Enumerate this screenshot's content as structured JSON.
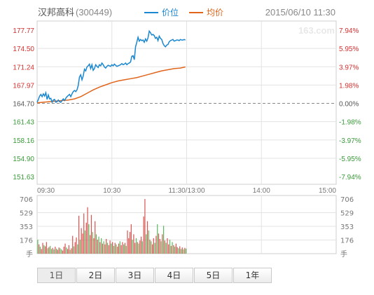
{
  "header": {
    "stock_name": "汉邦高科",
    "stock_code": "(300449)",
    "legend_price": "价位",
    "legend_avg": "均价",
    "datetime": "2015/06/10 11:30",
    "watermark": "163.com"
  },
  "colors": {
    "price_line": "#1a87d0",
    "avg_line": "#e0641a",
    "up": "#d62f2f",
    "down": "#3a9a3a",
    "grid": "#e3e3e3",
    "baseline": "#888888",
    "vol_up": "#d9534f",
    "vol_down": "#5cb85c"
  },
  "tabs": [
    {
      "label": "1日",
      "active": true
    },
    {
      "label": "2日",
      "active": false
    },
    {
      "label": "3日",
      "active": false
    },
    {
      "label": "4日",
      "active": false
    },
    {
      "label": "5日",
      "active": false
    },
    {
      "label": "1年",
      "active": false
    }
  ],
  "chart_data": {
    "type": "line",
    "price_axis": {
      "ticks": [
        "177.77",
        "174.50",
        "171.24",
        "167.97",
        "164.70",
        "161.43",
        "158.16",
        "154.90",
        "151.63"
      ],
      "min": 151.63,
      "max": 177.77,
      "baseline": 164.7
    },
    "percent_axis": {
      "ticks": [
        "7.94%",
        "5.95%",
        "3.97%",
        "1.98%",
        "0.00%",
        "-1.98%",
        "-3.97%",
        "-5.95%",
        "-7.94%"
      ]
    },
    "time_axis": {
      "ticks": [
        "09:30",
        "10:30",
        "11:30/13:00",
        "14:00",
        "15:00"
      ],
      "total_minutes": 240
    },
    "series": [
      {
        "name": "价位",
        "points": [
          [
            0,
            164.9
          ],
          [
            1,
            165.4
          ],
          [
            2,
            166.0
          ],
          [
            3,
            166.3
          ],
          [
            4,
            165.9
          ],
          [
            5,
            166.4
          ],
          [
            6,
            166.0
          ],
          [
            7,
            166.6
          ],
          [
            8,
            165.4
          ],
          [
            9,
            166.2
          ],
          [
            10,
            165.5
          ],
          [
            11,
            165.6
          ],
          [
            12,
            164.9
          ],
          [
            13,
            165.3
          ],
          [
            14,
            165.4
          ],
          [
            15,
            164.9
          ],
          [
            16,
            165.0
          ],
          [
            17,
            165.3
          ],
          [
            18,
            165.0
          ],
          [
            19,
            164.9
          ],
          [
            20,
            165.2
          ],
          [
            21,
            165.5
          ],
          [
            22,
            165.2
          ],
          [
            23,
            165.6
          ],
          [
            24,
            165.9
          ],
          [
            25,
            166.1
          ],
          [
            26,
            166.3
          ],
          [
            27,
            165.9
          ],
          [
            28,
            166.4
          ],
          [
            29,
            166.8
          ],
          [
            30,
            167.0
          ],
          [
            31,
            166.8
          ],
          [
            32,
            167.1
          ],
          [
            33,
            167.9
          ],
          [
            34,
            169.4
          ],
          [
            35,
            169.8
          ],
          [
            36,
            168.9
          ],
          [
            37,
            169.6
          ],
          [
            38,
            170.8
          ],
          [
            39,
            170.5
          ],
          [
            40,
            171.2
          ],
          [
            41,
            171.4
          ],
          [
            42,
            171.7
          ],
          [
            43,
            170.9
          ],
          [
            44,
            171.6
          ],
          [
            45,
            170.6
          ],
          [
            46,
            170.9
          ],
          [
            47,
            171.6
          ],
          [
            48,
            171.3
          ],
          [
            49,
            171.1
          ],
          [
            50,
            171.6
          ],
          [
            51,
            171.4
          ],
          [
            52,
            171.9
          ],
          [
            53,
            171.6
          ],
          [
            54,
            171.2
          ],
          [
            55,
            171.0
          ],
          [
            56,
            171.3
          ],
          [
            57,
            171.5
          ],
          [
            58,
            171.4
          ],
          [
            59,
            171.3
          ],
          [
            60,
            171.6
          ],
          [
            61,
            171.4
          ],
          [
            62,
            171.7
          ],
          [
            63,
            171.5
          ],
          [
            64,
            171.3
          ],
          [
            65,
            171.4
          ],
          [
            66,
            171.5
          ],
          [
            67,
            171.6
          ],
          [
            68,
            171.8
          ],
          [
            69,
            171.6
          ],
          [
            70,
            171.7
          ],
          [
            71,
            171.9
          ],
          [
            72,
            171.6
          ],
          [
            73,
            171.8
          ],
          [
            74,
            171.9
          ],
          [
            75,
            172.1
          ],
          [
            76,
            173.1
          ],
          [
            77,
            173.2
          ],
          [
            78,
            172.5
          ],
          [
            79,
            174.8
          ],
          [
            80,
            175.6
          ],
          [
            81,
            176.5
          ],
          [
            82,
            175.8
          ],
          [
            83,
            176.1
          ],
          [
            84,
            175.9
          ],
          [
            85,
            176.0
          ],
          [
            86,
            175.6
          ],
          [
            87,
            176.2
          ],
          [
            88,
            175.8
          ],
          [
            89,
            176.4
          ],
          [
            90,
            177.6
          ],
          [
            91,
            177.3
          ],
          [
            92,
            176.9
          ],
          [
            93,
            177.0
          ],
          [
            94,
            176.8
          ],
          [
            95,
            176.3
          ],
          [
            96,
            176.5
          ],
          [
            97,
            175.9
          ],
          [
            98,
            176.7
          ],
          [
            99,
            176.3
          ],
          [
            100,
            176.1
          ],
          [
            101,
            175.4
          ],
          [
            102,
            175.0
          ],
          [
            103,
            174.8
          ],
          [
            104,
            175.1
          ],
          [
            105,
            175.2
          ],
          [
            106,
            175.7
          ],
          [
            107,
            175.9
          ],
          [
            108,
            176.0
          ],
          [
            109,
            176.1
          ],
          [
            110,
            175.8
          ],
          [
            111,
            175.9
          ],
          [
            112,
            176.0
          ],
          [
            113,
            176.0
          ],
          [
            114,
            175.9
          ],
          [
            115,
            176.1
          ],
          [
            116,
            176.0
          ],
          [
            117,
            176.0
          ],
          [
            118,
            176.1
          ],
          [
            119,
            176.0
          ]
        ]
      },
      {
        "name": "均价",
        "points": [
          [
            0,
            164.8
          ],
          [
            5,
            164.9
          ],
          [
            10,
            165.0
          ],
          [
            15,
            165.1
          ],
          [
            20,
            165.2
          ],
          [
            25,
            165.3
          ],
          [
            30,
            165.5
          ],
          [
            35,
            165.9
          ],
          [
            40,
            166.5
          ],
          [
            45,
            167.1
          ],
          [
            50,
            167.6
          ],
          [
            55,
            168.0
          ],
          [
            60,
            168.4
          ],
          [
            65,
            168.7
          ],
          [
            70,
            168.9
          ],
          [
            75,
            169.1
          ],
          [
            80,
            169.3
          ],
          [
            85,
            169.6
          ],
          [
            90,
            169.9
          ],
          [
            95,
            170.2
          ],
          [
            100,
            170.5
          ],
          [
            105,
            170.7
          ],
          [
            110,
            170.9
          ],
          [
            115,
            171.0
          ],
          [
            119,
            171.2
          ]
        ]
      }
    ],
    "volume": {
      "ticks": [
        "706",
        "529",
        "353",
        "176",
        "手"
      ],
      "max": 706,
      "values": [
        180,
        120,
        90,
        60,
        140,
        110,
        95,
        150,
        70,
        85,
        100,
        60,
        75,
        55,
        90,
        65,
        50,
        80,
        70,
        55,
        40,
        90,
        130,
        80,
        60,
        110,
        50,
        70,
        230,
        95,
        150,
        210,
        120,
        490,
        180,
        330,
        260,
        520,
        300,
        400,
        600,
        380,
        240,
        500,
        280,
        200,
        420,
        250,
        180,
        220,
        150,
        200,
        130,
        160,
        120,
        190,
        140,
        110,
        170,
        130,
        150,
        100,
        140,
        120,
        90,
        130,
        160,
        110,
        150,
        120,
        140,
        100,
        300,
        200,
        280,
        380,
        180,
        250,
        140,
        200,
        150,
        130,
        170,
        220,
        160,
        480,
        706,
        250,
        420,
        300,
        180,
        160,
        120,
        200,
        140,
        230,
        380,
        260,
        190,
        160,
        250,
        360,
        170,
        140,
        200,
        120,
        180,
        100,
        150,
        110,
        90,
        130,
        85,
        70,
        95,
        60,
        80,
        55,
        75,
        65
      ],
      "directions": [
        "d",
        "u",
        "d",
        "u",
        "u",
        "d",
        "u",
        "u",
        "d",
        "u",
        "d",
        "d",
        "u",
        "d",
        "u",
        "d",
        "u",
        "u",
        "d",
        "d",
        "u",
        "u",
        "u",
        "d",
        "u",
        "u",
        "d",
        "u",
        "u",
        "d",
        "u",
        "u",
        "d",
        "u",
        "d",
        "u",
        "u",
        "u",
        "d",
        "u",
        "u",
        "d",
        "u",
        "u",
        "d",
        "u",
        "u",
        "d",
        "u",
        "d",
        "u",
        "d",
        "u",
        "d",
        "u",
        "u",
        "d",
        "u",
        "u",
        "d",
        "u",
        "d",
        "u",
        "d",
        "u",
        "u",
        "d",
        "u",
        "u",
        "d",
        "u",
        "d",
        "u",
        "u",
        "u",
        "u",
        "d",
        "u",
        "u",
        "d",
        "u",
        "d",
        "u",
        "u",
        "d",
        "u",
        "u",
        "d",
        "u",
        "d",
        "u",
        "d",
        "u",
        "u",
        "d",
        "u",
        "d",
        "u",
        "u",
        "d",
        "u",
        "d",
        "u",
        "d",
        "u",
        "u",
        "d",
        "u",
        "d",
        "u",
        "d",
        "u",
        "u",
        "d",
        "u",
        "d",
        "u",
        "d",
        "u",
        "d"
      ]
    }
  }
}
